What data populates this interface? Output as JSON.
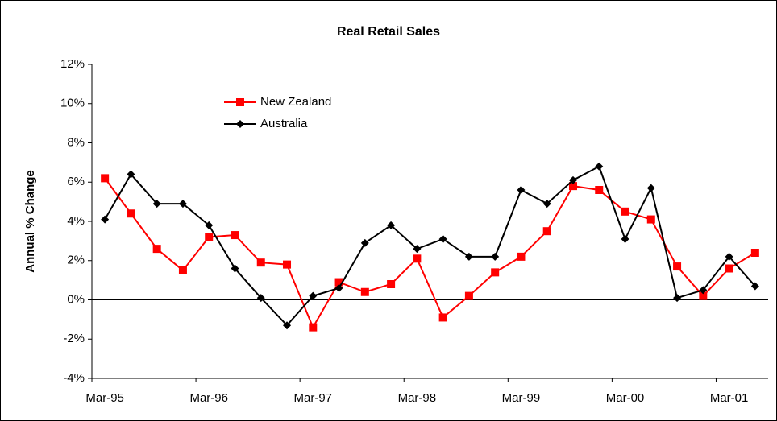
{
  "chart_data": {
    "type": "line",
    "title": "Real Retail Sales",
    "y_label": "Annual % Change",
    "categories": [
      "Mar-95",
      null,
      null,
      null,
      "Mar-96",
      null,
      null,
      null,
      "Mar-97",
      null,
      null,
      null,
      "Mar-98",
      null,
      null,
      null,
      "Mar-99",
      null,
      null,
      null,
      "Mar-00",
      null,
      null,
      null,
      "Mar-01",
      null
    ],
    "series": [
      {
        "name": "New Zealand",
        "color": "#ff0000",
        "marker": "square",
        "values": [
          6.2,
          4.4,
          2.6,
          1.5,
          3.2,
          3.3,
          1.9,
          1.8,
          -1.4,
          0.9,
          0.4,
          0.8,
          2.1,
          -0.9,
          0.2,
          1.4,
          2.2,
          3.5,
          5.8,
          5.6,
          4.5,
          4.1,
          1.7,
          0.2,
          1.6,
          2.4
        ]
      },
      {
        "name": "Australia",
        "color": "#000000",
        "marker": "diamond",
        "values": [
          4.1,
          6.4,
          4.9,
          4.9,
          3.8,
          1.6,
          0.1,
          -1.3,
          0.2,
          0.6,
          2.9,
          3.8,
          2.6,
          3.1,
          2.2,
          2.2,
          5.6,
          4.9,
          6.1,
          6.8,
          3.1,
          5.7,
          0.1,
          0.5,
          2.2,
          0.7
        ]
      }
    ],
    "ylim": [
      -4,
      12
    ],
    "yticks": [
      {
        "value": -4,
        "label": "-4%"
      },
      {
        "value": -2,
        "label": "-2%"
      },
      {
        "value": 0,
        "label": "0%"
      },
      {
        "value": 2,
        "label": "2%"
      },
      {
        "value": 4,
        "label": "4%"
      },
      {
        "value": 6,
        "label": "6%"
      },
      {
        "value": 8,
        "label": "8%"
      },
      {
        "value": 10,
        "label": "10%"
      },
      {
        "value": 12,
        "label": "12%"
      }
    ],
    "grid": false,
    "legend": "upper-left"
  }
}
